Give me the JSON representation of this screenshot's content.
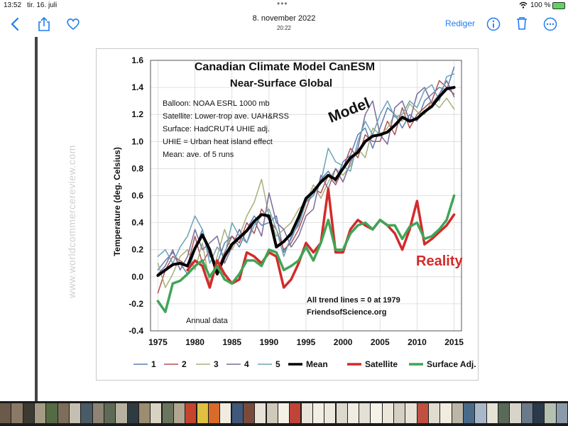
{
  "status_bar": {
    "time": "13:52",
    "date": "tir. 16. juli",
    "dots": "•••",
    "battery_pct": "100 %",
    "wifi": "wifi-icon",
    "battery": "battery-icon"
  },
  "nav": {
    "back_icon": "chevron-left-icon",
    "share_icon": "share-icon",
    "favorite_icon": "heart-icon",
    "title": "8. november 2022",
    "subtitle": "20:22",
    "edit_label": "Rediger",
    "info_icon": "info-icon",
    "trash_icon": "trash-icon",
    "more_icon": "more-icon",
    "accent_color": "#1e7cf2"
  },
  "watermark": "www.worldcommercereview.com",
  "chart_data": {
    "type": "line",
    "title": "Canadian Climate Model CanESM",
    "subtitle": "Near-Surface Global",
    "ylabel": "Temperature (deg. Celsius)",
    "xlabel": "",
    "xlim": [
      1974,
      2016
    ],
    "ylim": [
      -0.4,
      1.6
    ],
    "x_ticks": [
      1975,
      1980,
      1985,
      1990,
      1995,
      2000,
      2005,
      2010,
      2015
    ],
    "y_ticks": [
      -0.4,
      -0.2,
      0.0,
      0.2,
      0.4,
      0.6,
      0.8,
      1.0,
      1.2,
      1.4,
      1.6
    ],
    "y_tick_labels": [
      "-0.4",
      "-0.2",
      "0.0",
      "0.2",
      "0.4",
      "0.6",
      "0.8",
      "1.0",
      "1.2",
      "1.4",
      "1.6"
    ],
    "info_lines": [
      "Balloon: NOAA ESRL 1000  mb",
      "Satellite: Lower-trop ave. UAH&RSS",
      "Surface: HadCRUT4  UHIE adj.",
      "UHIE = Urban heat island effect",
      "Mean: ave. of 5 runs"
    ],
    "annotations": {
      "model": "Model",
      "reality": "Reality",
      "trend": "All trend lines = 0 at 1979",
      "source": "FriendsofScience.org",
      "annual": "Annual data"
    },
    "colors": {
      "model": "#000000",
      "reality": "#d22b2b",
      "info": "#000000"
    },
    "x": [
      1975,
      1976,
      1977,
      1978,
      1979,
      1980,
      1981,
      1982,
      1983,
      1984,
      1985,
      1986,
      1987,
      1988,
      1989,
      1990,
      1991,
      1992,
      1993,
      1994,
      1995,
      1996,
      1997,
      1998,
      1999,
      2000,
      2001,
      2002,
      2003,
      2004,
      2005,
      2006,
      2007,
      2008,
      2009,
      2010,
      2011,
      2012,
      2013,
      2014,
      2015
    ],
    "series": [
      {
        "name": "1",
        "color": "#5b7fb5",
        "width": 1.5,
        "values": [
          0.05,
          0.12,
          0.18,
          0.1,
          0.02,
          0.2,
          0.35,
          0.15,
          0.1,
          0.25,
          0.3,
          0.22,
          0.35,
          0.45,
          0.38,
          0.4,
          0.45,
          0.18,
          0.28,
          0.4,
          0.55,
          0.6,
          0.72,
          0.78,
          0.7,
          0.85,
          0.9,
          1.05,
          1.1,
          0.95,
          1.1,
          1.25,
          1.2,
          1.1,
          1.2,
          1.15,
          1.3,
          1.35,
          1.4,
          1.38,
          1.55
        ]
      },
      {
        "name": "2",
        "color": "#b05252",
        "width": 1.5,
        "values": [
          -0.12,
          0.05,
          0.15,
          0.12,
          0.08,
          0.3,
          0.1,
          0.2,
          0.05,
          0.18,
          0.3,
          0.25,
          0.4,
          0.32,
          0.5,
          0.42,
          0.35,
          0.2,
          0.25,
          0.35,
          0.5,
          0.65,
          0.62,
          0.75,
          0.68,
          0.8,
          0.95,
          0.88,
          1.05,
          1.0,
          1.0,
          1.15,
          1.05,
          1.25,
          1.1,
          1.2,
          1.25,
          1.3,
          1.45,
          1.4,
          1.35
        ]
      },
      {
        "name": "3",
        "color": "#a8b07a",
        "width": 1.5,
        "values": [
          0.1,
          -0.08,
          0.02,
          0.15,
          0.2,
          0.05,
          0.25,
          -0.05,
          0.15,
          0.35,
          0.2,
          0.3,
          0.45,
          0.55,
          0.72,
          0.45,
          0.3,
          0.35,
          0.4,
          0.5,
          0.55,
          0.68,
          0.58,
          0.7,
          0.8,
          0.75,
          0.82,
          0.95,
          0.88,
          1.1,
          1.05,
          1.1,
          1.2,
          1.15,
          1.28,
          1.22,
          1.2,
          1.3,
          1.25,
          1.32,
          1.24
        ]
      },
      {
        "name": "4",
        "color": "#7a6a9a",
        "width": 1.5,
        "values": [
          0.02,
          0.08,
          0.2,
          0.05,
          0.15,
          0.35,
          0.2,
          0.25,
          0.3,
          0.1,
          0.22,
          0.35,
          0.25,
          0.42,
          0.3,
          0.62,
          0.4,
          0.35,
          0.22,
          0.3,
          0.45,
          0.5,
          0.75,
          0.65,
          0.8,
          0.7,
          0.85,
          0.95,
          1.2,
          1.3,
          1.05,
          0.98,
          1.25,
          1.3,
          1.15,
          1.35,
          1.4,
          1.28,
          1.35,
          1.45,
          1.33
        ]
      },
      {
        "name": "5",
        "color": "#6aa3b5",
        "width": 1.5,
        "values": [
          0.15,
          0.2,
          0.1,
          0.22,
          0.3,
          0.45,
          0.35,
          0.1,
          0.22,
          0.15,
          0.4,
          0.3,
          0.25,
          0.38,
          0.45,
          0.5,
          0.35,
          0.15,
          0.3,
          0.38,
          0.55,
          0.62,
          0.7,
          0.95,
          0.85,
          0.82,
          0.78,
          1.0,
          1.15,
          1.05,
          1.2,
          1.3,
          1.18,
          1.2,
          1.3,
          1.25,
          1.38,
          1.42,
          1.3,
          1.48,
          1.5
        ]
      },
      {
        "name": "Mean",
        "color": "#000000",
        "width": 4,
        "values": [
          0.01,
          0.05,
          0.09,
          0.1,
          0.08,
          0.21,
          0.31,
          0.2,
          0.02,
          0.15,
          0.24,
          0.29,
          0.34,
          0.41,
          0.46,
          0.45,
          0.22,
          0.26,
          0.32,
          0.44,
          0.58,
          0.63,
          0.7,
          0.75,
          0.72,
          0.8,
          0.88,
          0.92,
          1.0,
          1.04,
          1.05,
          1.07,
          1.12,
          1.18,
          1.15,
          1.17,
          1.22,
          1.26,
          1.33,
          1.39,
          1.4
        ]
      },
      {
        "name": "Satellite",
        "color": "#d22b2b",
        "width": 3.5,
        "values": [
          null,
          null,
          null,
          null,
          0.05,
          0.12,
          0.08,
          -0.08,
          0.12,
          0.02,
          -0.05,
          -0.02,
          0.18,
          0.15,
          0.1,
          0.18,
          0.15,
          -0.08,
          -0.02,
          0.1,
          0.25,
          0.18,
          0.25,
          0.65,
          0.18,
          0.18,
          0.35,
          0.42,
          0.38,
          0.35,
          0.42,
          0.38,
          0.32,
          0.2,
          0.35,
          0.56,
          0.24,
          0.28,
          0.33,
          0.38,
          0.46
        ]
      },
      {
        "name": "Surface Adj.",
        "color": "#3fa556",
        "width": 3.5,
        "values": [
          -0.18,
          -0.26,
          -0.05,
          -0.03,
          0.02,
          0.08,
          0.12,
          0.0,
          0.08,
          -0.02,
          -0.05,
          0.02,
          0.12,
          0.12,
          0.08,
          0.2,
          0.18,
          0.05,
          0.08,
          0.12,
          0.22,
          0.12,
          0.25,
          0.42,
          0.2,
          0.2,
          0.32,
          0.38,
          0.4,
          0.35,
          0.42,
          0.38,
          0.38,
          0.28,
          0.37,
          0.4,
          0.28,
          0.3,
          0.35,
          0.42,
          0.6
        ]
      }
    ],
    "legend": [
      {
        "label": "1",
        "color": "#5b7fb5"
      },
      {
        "label": "2",
        "color": "#b05252"
      },
      {
        "label": "3",
        "color": "#a8b07a"
      },
      {
        "label": "4",
        "color": "#7a6a9a"
      },
      {
        "label": "5",
        "color": "#6aa3b5"
      },
      {
        "label": "Mean",
        "color": "#000000"
      },
      {
        "label": "Satellite",
        "color": "#d22b2b"
      },
      {
        "label": "Surface Adj.",
        "color": "#3fa556"
      }
    ],
    "legend_position": "bottom",
    "grid": true
  },
  "thumbnails": {
    "colors": [
      "#6b5a4a",
      "#8a7a65",
      "#3d3a33",
      "#a49a85",
      "#556b44",
      "#7d6e5c",
      "#c4bfb2",
      "#4a5a66",
      "#8d8474",
      "#5f6a56",
      "#b8b0a0",
      "#2f3b40",
      "#9c8c70",
      "#d8d2c2",
      "#6a7560",
      "#b2a690",
      "#c6432e",
      "#e0c040",
      "#d86a2a",
      "#f0ece0",
      "#40587a",
      "#7a4a3a",
      "#e6e2d8",
      "#d0c8b8",
      "#f4f0e6",
      "#c04438",
      "#e8e4da",
      "#f2eee4",
      "#ece8de",
      "#dcd8cc",
      "#f0ece2",
      "#e4e0d6",
      "#f6f2e8",
      "#ece6da",
      "#d4d0c4",
      "#e8e2d6",
      "#c05040",
      "#e0dcd0",
      "#f2ecde",
      "#bcb6a8",
      "#4a6a8a",
      "#a8b8c8",
      "#e6e2d6",
      "#5a6a5a",
      "#d8d4c8",
      "#6a7a8a",
      "#2a3a4a",
      "#b4c0b0",
      "#8a9aa8"
    ]
  }
}
